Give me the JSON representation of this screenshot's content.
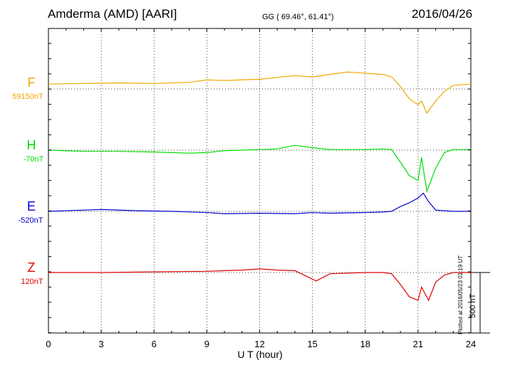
{
  "header": {
    "station": "Amderma (AMD)  [AARI]",
    "coords": "GG ( 69.46°,  61.41°)",
    "date": "2016/04/26"
  },
  "components": [
    {
      "name": "F",
      "baseline": "59150nT",
      "color": "#f0a800"
    },
    {
      "name": "H",
      "baseline": "-70nT",
      "color": "#00dd00"
    },
    {
      "name": "E",
      "baseline": "-520nT",
      "color": "#0000cc"
    },
    {
      "name": "Z",
      "baseline": "120nT",
      "color": "#dd0000"
    }
  ],
  "plotted_note": "Plotted at 2016/05/23 01:19 UT",
  "scale_label": "500 nT",
  "chart_data": {
    "type": "line",
    "xlabel": "U T (hour)",
    "xlim": [
      0,
      24
    ],
    "x_ticks": [
      "0",
      "3",
      "6",
      "9",
      "12",
      "15",
      "18",
      "21",
      "24"
    ],
    "grid": true,
    "series": [
      {
        "name": "F",
        "points": [
          [
            0,
            40
          ],
          [
            2,
            45
          ],
          [
            4,
            50
          ],
          [
            6,
            45
          ],
          [
            8,
            55
          ],
          [
            9,
            75
          ],
          [
            10,
            70
          ],
          [
            12,
            80
          ],
          [
            13,
            95
          ],
          [
            14,
            110
          ],
          [
            15,
            100
          ],
          [
            16,
            120
          ],
          [
            17,
            140
          ],
          [
            18,
            130
          ],
          [
            19,
            120
          ],
          [
            19.5,
            100
          ],
          [
            20,
            20
          ],
          [
            20.5,
            -80
          ],
          [
            21,
            -130
          ],
          [
            21.2,
            -100
          ],
          [
            21.5,
            -200
          ],
          [
            22,
            -100
          ],
          [
            22.5,
            -20
          ],
          [
            23,
            30
          ],
          [
            24,
            40
          ]
        ]
      },
      {
        "name": "H",
        "points": [
          [
            0,
            0
          ],
          [
            2,
            -10
          ],
          [
            4,
            -10
          ],
          [
            6,
            -15
          ],
          [
            8,
            -25
          ],
          [
            9,
            -20
          ],
          [
            10,
            -5
          ],
          [
            11,
            0
          ],
          [
            12,
            5
          ],
          [
            13,
            10
          ],
          [
            14,
            40
          ],
          [
            15,
            20
          ],
          [
            16,
            5
          ],
          [
            18,
            5
          ],
          [
            19,
            10
          ],
          [
            19.5,
            5
          ],
          [
            20,
            -100
          ],
          [
            20.5,
            -210
          ],
          [
            21,
            -250
          ],
          [
            21.2,
            -60
          ],
          [
            21.5,
            -340
          ],
          [
            22,
            -150
          ],
          [
            22.5,
            -20
          ],
          [
            23,
            5
          ],
          [
            24,
            5
          ]
        ]
      },
      {
        "name": "E",
        "points": [
          [
            0,
            0
          ],
          [
            2,
            10
          ],
          [
            3,
            15
          ],
          [
            5,
            5
          ],
          [
            7,
            0
          ],
          [
            9,
            -10
          ],
          [
            10,
            -20
          ],
          [
            12,
            -15
          ],
          [
            14,
            -20
          ],
          [
            15,
            -10
          ],
          [
            16,
            -15
          ],
          [
            18,
            -10
          ],
          [
            19,
            -5
          ],
          [
            19.5,
            0
          ],
          [
            20,
            40
          ],
          [
            20.5,
            70
          ],
          [
            21,
            110
          ],
          [
            21.3,
            150
          ],
          [
            21.6,
            80
          ],
          [
            22,
            10
          ],
          [
            23,
            0
          ],
          [
            24,
            0
          ]
        ]
      },
      {
        "name": "Z",
        "points": [
          [
            0,
            0
          ],
          [
            3,
            0
          ],
          [
            6,
            5
          ],
          [
            9,
            10
          ],
          [
            10,
            15
          ],
          [
            11,
            20
          ],
          [
            12,
            30
          ],
          [
            13,
            20
          ],
          [
            14,
            15
          ],
          [
            14.8,
            -40
          ],
          [
            15.2,
            -70
          ],
          [
            16,
            -10
          ],
          [
            18,
            0
          ],
          [
            19,
            0
          ],
          [
            19.5,
            -10
          ],
          [
            20,
            -100
          ],
          [
            20.5,
            -200
          ],
          [
            21,
            -230
          ],
          [
            21.2,
            -120
          ],
          [
            21.6,
            -230
          ],
          [
            22,
            -80
          ],
          [
            22.5,
            -20
          ],
          [
            23,
            0
          ],
          [
            24,
            0
          ]
        ]
      }
    ]
  }
}
